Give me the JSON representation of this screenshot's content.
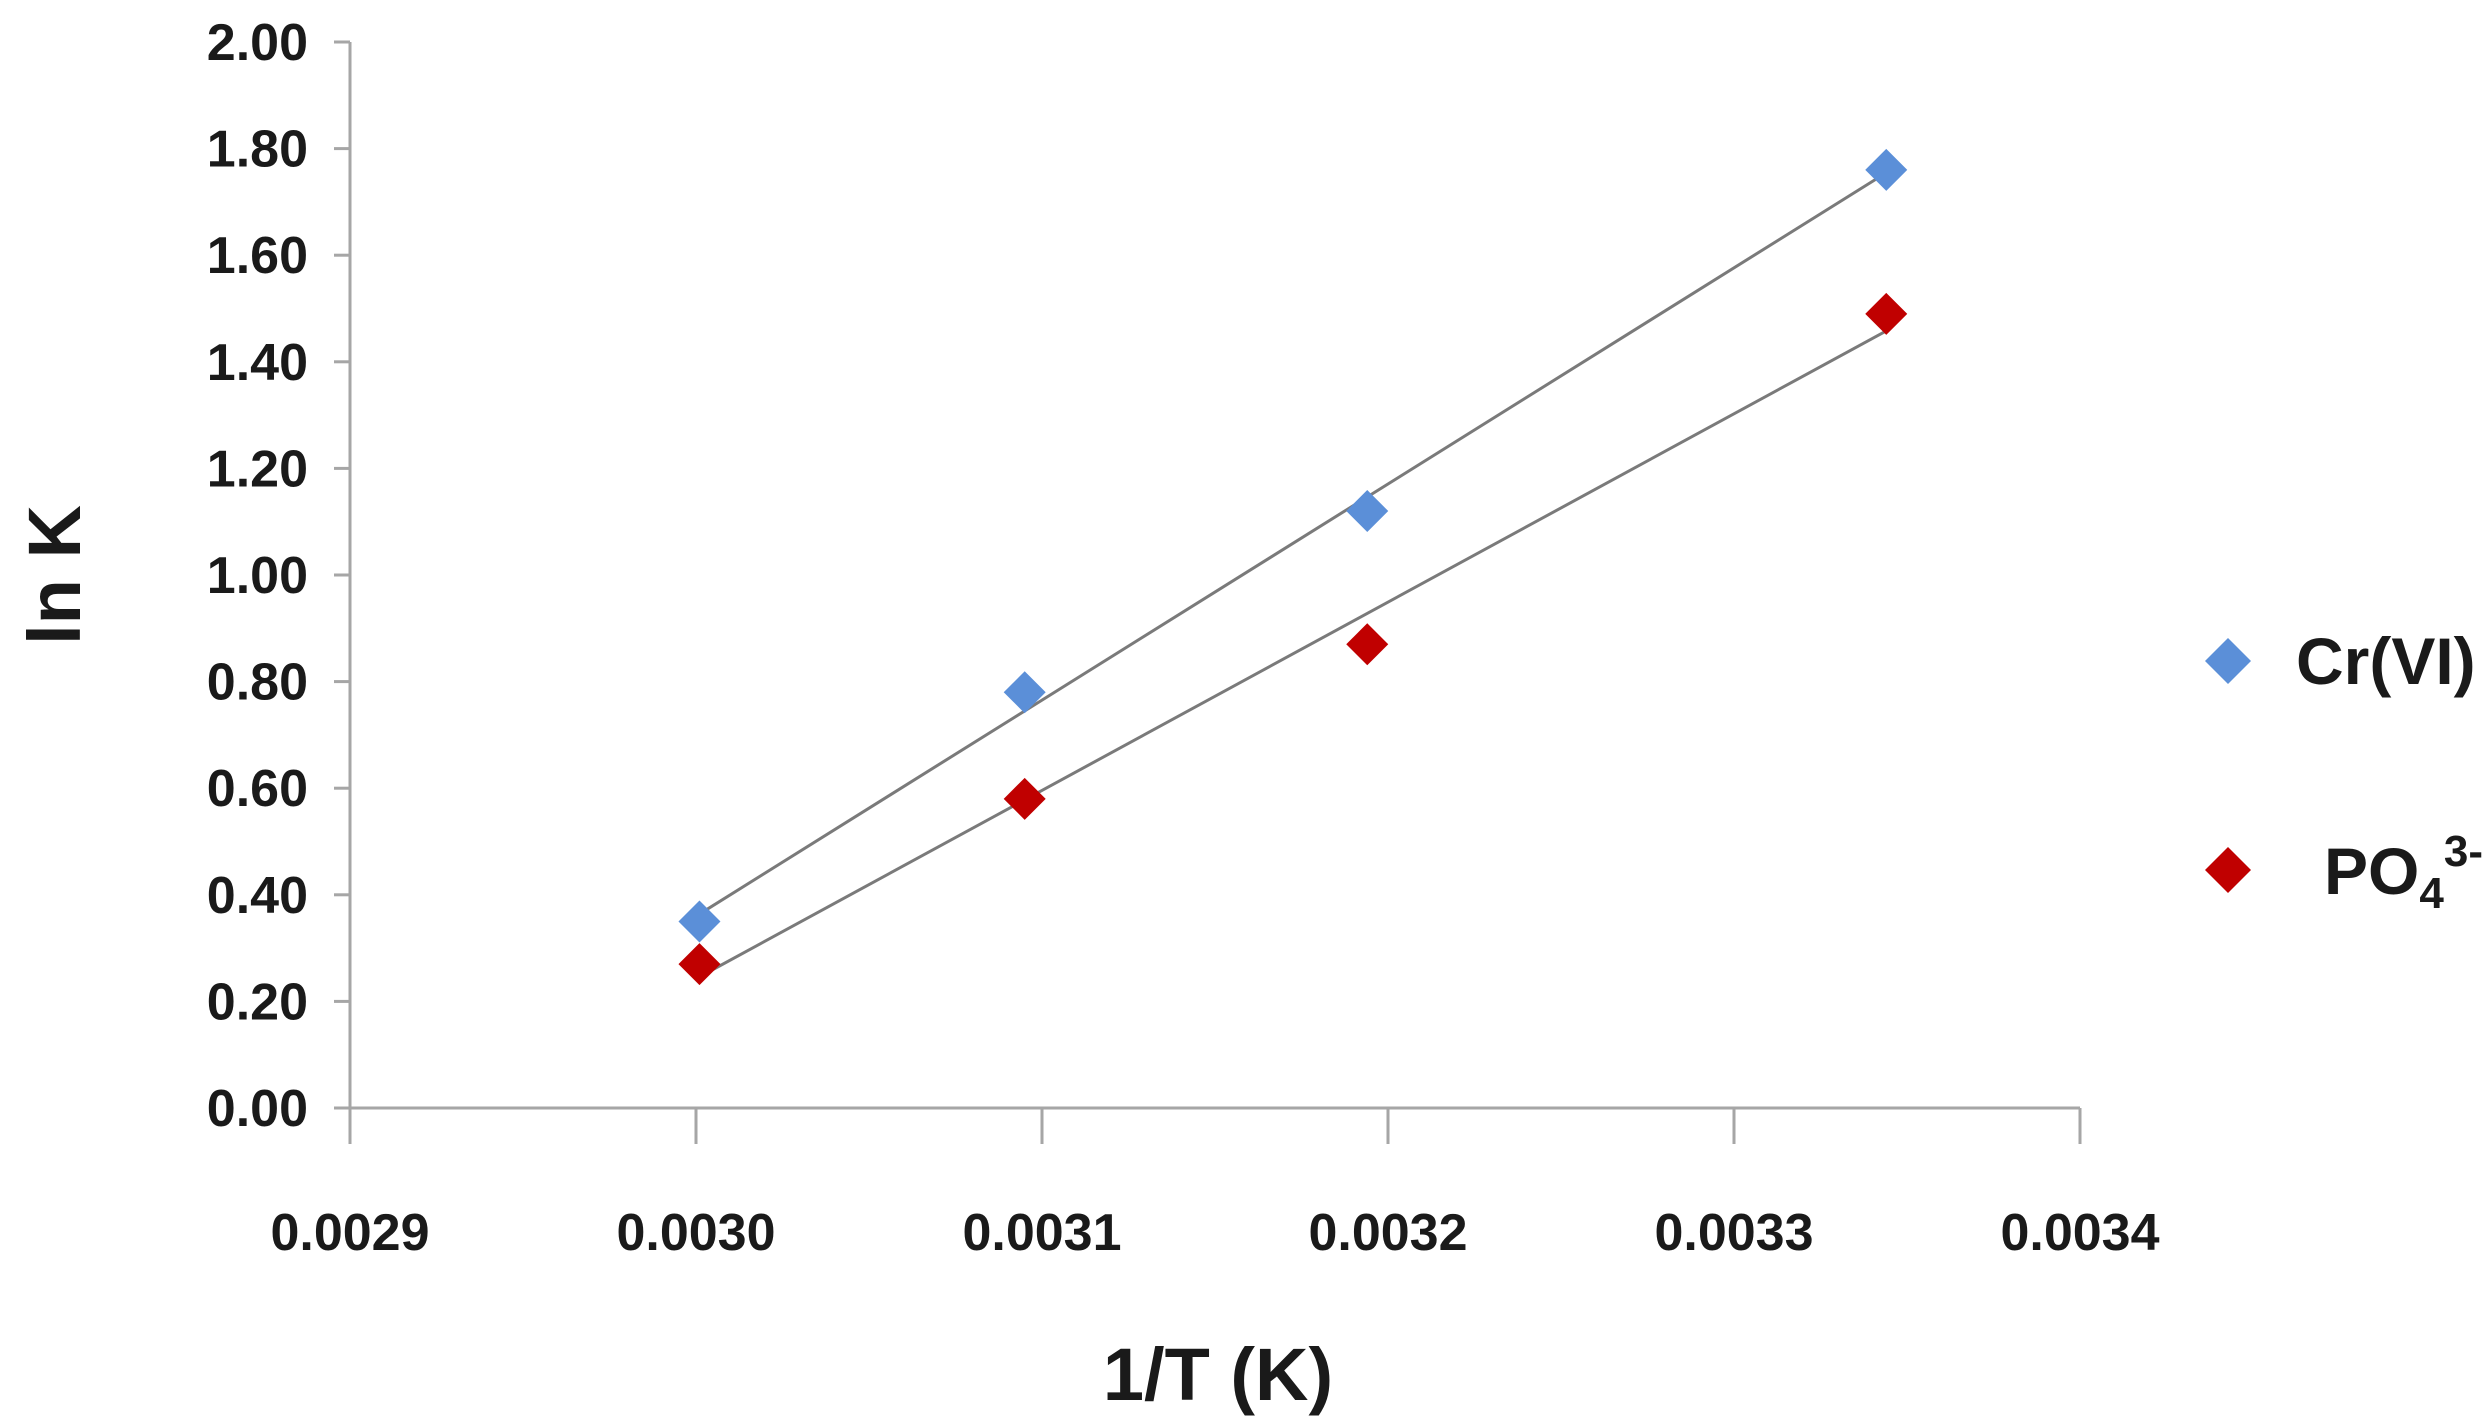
{
  "chart_data": {
    "type": "scatter",
    "xlabel": "1/T (K)",
    "ylabel": "ln K",
    "xlim": [
      0.0029,
      0.0034
    ],
    "ylim": [
      0.0,
      2.0
    ],
    "x_ticks": [
      "0.0029",
      "0.0030",
      "0.0031",
      "0.0032",
      "0.0033",
      "0.0034"
    ],
    "y_ticks": [
      "0.00",
      "0.20",
      "0.40",
      "0.60",
      "0.80",
      "1.00",
      "1.20",
      "1.40",
      "1.60",
      "1.80",
      "2.00"
    ],
    "grid": false,
    "legend_position": "right",
    "series": [
      {
        "name": "Cr(VI)",
        "color": "#5b8fd8",
        "marker": "diamond",
        "x": [
          0.003001,
          0.003095,
          0.003194,
          0.003344
        ],
        "y": [
          0.35,
          0.78,
          1.12,
          1.76
        ],
        "trendline": true
      },
      {
        "name_parts": {
          "main": "PO",
          "sub": "4",
          "sup": "3-"
        },
        "color": "#c00000",
        "marker": "diamond",
        "x": [
          0.003001,
          0.003095,
          0.003194,
          0.003344
        ],
        "y": [
          0.27,
          0.58,
          0.87,
          1.49
        ],
        "trendline": true
      }
    ],
    "trendline_color": "#7a7a7a"
  }
}
